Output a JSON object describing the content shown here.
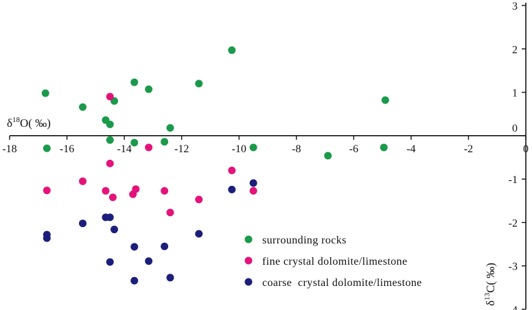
{
  "chart_data": {
    "type": "scatter",
    "title": "",
    "xlabel": {
      "base": "δ",
      "sup": "18",
      "rest": "O( ‰)"
    },
    "ylabel": {
      "base": "δ",
      "sup": "13",
      "rest": "C( ‰)"
    },
    "xlim": [
      -18,
      0
    ],
    "ylim": [
      -4,
      3
    ],
    "x_ticks": [
      -18,
      -16,
      -14,
      -12,
      -10,
      -8,
      -6,
      -4,
      -2,
      0
    ],
    "y_ticks": [
      3,
      2,
      1,
      0,
      -1,
      -2,
      -3,
      -4
    ],
    "legend_position": "bottom-center",
    "grid": false,
    "series": [
      {
        "name": "surrounding rocks",
        "color": "#1a9a4a",
        "points": [
          [
            -16.75,
            0.98
          ],
          [
            -15.45,
            0.66
          ],
          [
            -14.65,
            0.36
          ],
          [
            -14.5,
            0.26
          ],
          [
            -14.35,
            0.8
          ],
          [
            -13.65,
            1.23
          ],
          [
            -13.15,
            1.07
          ],
          [
            -11.4,
            1.2
          ],
          [
            -10.25,
            1.97
          ],
          [
            -12.4,
            0.18
          ],
          [
            -14.5,
            -0.1
          ],
          [
            -13.65,
            -0.16
          ],
          [
            -12.6,
            -0.14
          ],
          [
            -16.7,
            -0.29
          ],
          [
            -9.5,
            -0.27
          ],
          [
            -6.9,
            -0.46
          ],
          [
            -4.95,
            -0.27
          ],
          [
            -4.9,
            0.82
          ]
        ]
      },
      {
        "name": "fine crystal dolomite/limestone",
        "color": "#e4137b",
        "points": [
          [
            -14.5,
            0.9
          ],
          [
            -13.15,
            -0.27
          ],
          [
            -14.5,
            -0.64
          ],
          [
            -16.7,
            -1.26
          ],
          [
            -15.45,
            -1.05
          ],
          [
            -14.65,
            -1.27
          ],
          [
            -14.4,
            -1.42
          ],
          [
            -13.6,
            -1.23
          ],
          [
            -13.7,
            -1.35
          ],
          [
            -12.6,
            -1.27
          ],
          [
            -12.4,
            -1.77
          ],
          [
            -11.4,
            -1.47
          ],
          [
            -10.25,
            -0.8
          ],
          [
            -9.5,
            -1.27
          ]
        ]
      },
      {
        "name": "coarse  crystal dolomite/limestone",
        "color": "#1c1f7a",
        "points": [
          [
            -16.7,
            -2.28
          ],
          [
            -16.7,
            -2.36
          ],
          [
            -15.45,
            -2.02
          ],
          [
            -14.65,
            -1.88
          ],
          [
            -14.5,
            -1.88
          ],
          [
            -14.35,
            -2.16
          ],
          [
            -13.65,
            -2.56
          ],
          [
            -12.6,
            -2.55
          ],
          [
            -11.4,
            -2.26
          ],
          [
            -10.25,
            -1.24
          ],
          [
            -9.5,
            -1.09
          ],
          [
            -14.5,
            -2.91
          ],
          [
            -13.15,
            -2.89
          ],
          [
            -13.65,
            -3.34
          ],
          [
            -12.4,
            -3.27
          ]
        ]
      }
    ]
  }
}
